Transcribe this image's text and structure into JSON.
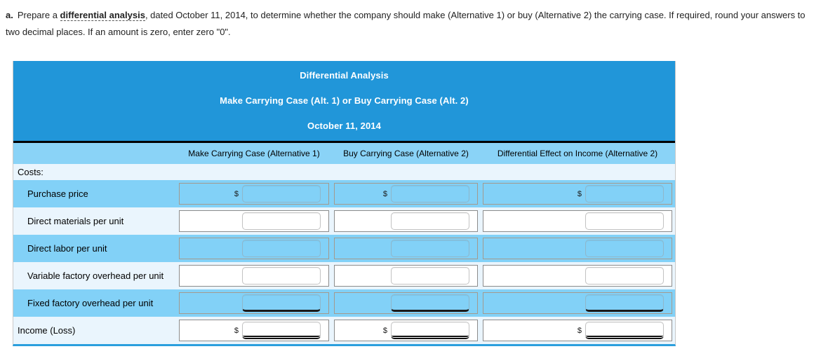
{
  "instructions": {
    "item_label": "a.",
    "before_term": "Prepare a ",
    "term": "differential analysis",
    "after_term": ", dated October 11, 2014, to determine whether the company should make (Alternative 1) or buy (Alternative 2) the carrying case. If required, round your answers to two decimal places. If an amount is zero, enter zero \"0\"."
  },
  "table": {
    "title": "Differential Analysis",
    "subtitle": "Make Carrying Case (Alt. 1) or Buy Carrying Case (Alt. 2)",
    "date": "October 11, 2014",
    "column_headers": [
      "Make Carrying Case (Alternative 1)",
      "Buy Carrying Case (Alternative 2)",
      "Differential Effect on Income (Alternative 2)"
    ],
    "section_label": "Costs:",
    "currency_symbol": "$",
    "rows": [
      {
        "label": "Purchase price",
        "indent": true,
        "shade": "blue",
        "dollar": true,
        "rule": "none",
        "values": [
          "",
          "",
          ""
        ]
      },
      {
        "label": "Direct materials per unit",
        "indent": true,
        "shade": "light",
        "dollar": false,
        "rule": "none",
        "values": [
          "",
          "",
          ""
        ]
      },
      {
        "label": "Direct labor per unit",
        "indent": true,
        "shade": "blue",
        "dollar": false,
        "rule": "none",
        "values": [
          "",
          "",
          ""
        ]
      },
      {
        "label": "Variable factory overhead per unit",
        "indent": true,
        "shade": "light",
        "dollar": false,
        "rule": "none",
        "values": [
          "",
          "",
          ""
        ]
      },
      {
        "label": "Fixed factory overhead per unit",
        "indent": true,
        "shade": "blue",
        "dollar": false,
        "rule": "single",
        "values": [
          "",
          "",
          ""
        ]
      },
      {
        "label": "Income (Loss)",
        "indent": false,
        "shade": "light",
        "dollar": true,
        "rule": "double",
        "values": [
          "",
          "",
          ""
        ]
      }
    ]
  },
  "colors": {
    "header_blue": "#2196d9",
    "colhead_blue": "#8ad3f7",
    "row_blue": "#82d1f7",
    "row_light": "#eaf5fd",
    "separator_black": "#000000",
    "table_bottom_blue": "#2b9fdd"
  }
}
